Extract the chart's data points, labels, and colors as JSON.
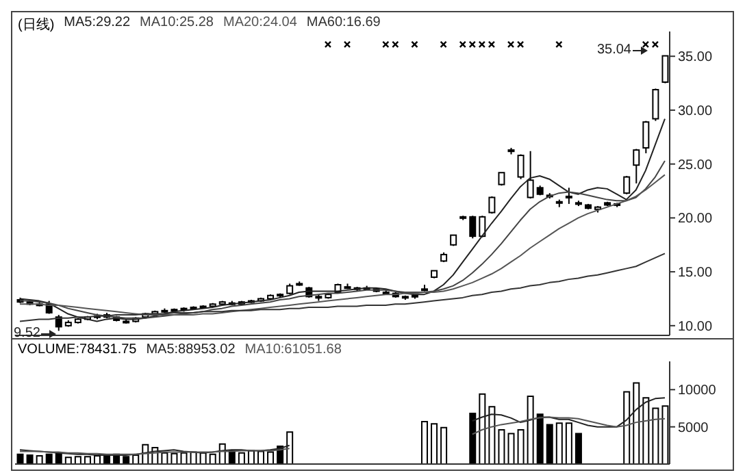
{
  "chart_data": [
    {
      "type": "candlestick",
      "title": "(日线)",
      "color": "#000000",
      "legend": "top left",
      "grid": false,
      "categories": [
        null,
        null,
        null,
        null,
        null,
        null,
        null,
        null,
        null,
        null,
        null,
        null,
        null,
        null,
        null,
        null,
        null,
        null,
        null,
        null,
        null,
        null,
        null,
        null,
        null,
        null,
        null,
        null,
        null,
        null,
        null,
        null,
        null,
        null,
        null,
        null,
        null,
        null,
        null,
        null,
        null,
        null,
        null,
        null,
        null,
        null,
        null,
        null,
        null,
        null,
        null,
        null,
        null,
        null,
        null,
        null,
        null,
        null,
        null,
        null,
        null,
        null,
        null,
        null,
        null,
        null,
        null,
        null
      ],
      "ohlc": [
        [
          12.4,
          12.6,
          12.1,
          12.2
        ],
        [
          12.2,
          12.4,
          11.9,
          12.0
        ],
        [
          12.0,
          12.3,
          11.8,
          12.0
        ],
        [
          12.0,
          12.3,
          11.1,
          11.2
        ],
        [
          10.8,
          11.0,
          9.52,
          9.9
        ],
        [
          10.0,
          10.5,
          9.9,
          10.3
        ],
        [
          10.3,
          10.7,
          10.2,
          10.6
        ],
        [
          10.6,
          10.9,
          10.5,
          10.8
        ],
        [
          10.8,
          11.1,
          10.6,
          10.9
        ],
        [
          11.0,
          11.2,
          10.7,
          10.8
        ],
        [
          10.8,
          10.9,
          10.4,
          10.5
        ],
        [
          10.4,
          10.6,
          10.2,
          10.3
        ],
        [
          10.4,
          10.8,
          10.3,
          10.7
        ],
        [
          10.8,
          11.2,
          10.7,
          11.1
        ],
        [
          11.1,
          11.4,
          11.0,
          11.3
        ],
        [
          11.3,
          11.6,
          11.2,
          11.4
        ],
        [
          11.4,
          11.6,
          11.2,
          11.5
        ],
        [
          11.5,
          11.7,
          11.3,
          11.6
        ],
        [
          11.6,
          11.8,
          11.5,
          11.7
        ],
        [
          11.7,
          11.9,
          11.6,
          11.8
        ],
        [
          11.8,
          12.1,
          11.7,
          12.0
        ],
        [
          12.0,
          12.3,
          11.9,
          12.2
        ],
        [
          12.1,
          12.3,
          11.9,
          12.0
        ],
        [
          12.0,
          12.3,
          11.9,
          12.2
        ],
        [
          12.2,
          12.4,
          12.1,
          12.3
        ],
        [
          12.3,
          12.6,
          12.2,
          12.5
        ],
        [
          12.5,
          12.9,
          12.4,
          12.8
        ],
        [
          12.8,
          13.0,
          12.6,
          12.9
        ],
        [
          13.0,
          13.9,
          12.9,
          13.7
        ],
        [
          13.9,
          14.1,
          13.7,
          13.9
        ],
        [
          13.5,
          13.6,
          12.6,
          12.7
        ],
        [
          12.7,
          12.9,
          12.3,
          12.6
        ],
        [
          12.6,
          13.0,
          12.5,
          12.9
        ],
        [
          13.1,
          13.9,
          13.0,
          13.8
        ],
        [
          13.6,
          13.9,
          13.4,
          13.6
        ],
        [
          13.4,
          13.6,
          13.2,
          13.5
        ],
        [
          13.5,
          13.7,
          13.3,
          13.4
        ],
        [
          13.4,
          13.5,
          13.1,
          13.2
        ],
        [
          13.1,
          13.3,
          12.9,
          13.0
        ],
        [
          13.0,
          13.1,
          12.6,
          12.7
        ],
        [
          12.6,
          12.8,
          12.4,
          12.7
        ],
        [
          12.7,
          12.9,
          12.5,
          12.8
        ],
        [
          13.3,
          13.8,
          13.2,
          13.4
        ],
        [
          14.5,
          15.1,
          14.4,
          15.1
        ],
        [
          16.0,
          16.8,
          15.9,
          16.6
        ],
        [
          17.5,
          18.4,
          17.4,
          18.4
        ],
        [
          20.0,
          20.2,
          19.8,
          20.1
        ],
        [
          20.1,
          20.2,
          18.1,
          18.3
        ],
        [
          18.3,
          20.2,
          18.2,
          20.1
        ],
        [
          20.5,
          22.0,
          20.4,
          21.9
        ],
        [
          23.1,
          24.2,
          23.0,
          24.2
        ],
        [
          26.3,
          26.5,
          25.9,
          26.3
        ],
        [
          23.8,
          25.9,
          23.6,
          25.8
        ],
        [
          21.9,
          26.2,
          21.8,
          23.5
        ],
        [
          22.8,
          23.0,
          22.1,
          22.2
        ],
        [
          22.1,
          22.3,
          21.8,
          22.0
        ],
        [
          21.5,
          21.7,
          21.0,
          21.5
        ],
        [
          21.9,
          22.8,
          21.3,
          22.0
        ],
        [
          21.4,
          21.6,
          21.1,
          21.3
        ],
        [
          21.2,
          21.3,
          20.8,
          20.9
        ],
        [
          20.8,
          21.1,
          20.5,
          21.0
        ],
        [
          21.4,
          21.5,
          21.1,
          21.2
        ],
        [
          21.2,
          21.4,
          21.0,
          21.3
        ],
        [
          22.3,
          23.9,
          22.2,
          23.8
        ],
        [
          24.9,
          26.4,
          23.2,
          26.3
        ],
        [
          26.5,
          29.0,
          26.0,
          28.9
        ],
        [
          29.2,
          32.0,
          29.0,
          31.9
        ],
        [
          32.6,
          35.04,
          32.5,
          35.04
        ]
      ],
      "ylim": [
        9.1,
        37.3
      ],
      "yticks": [
        {
          "value": 10,
          "label": "10.00"
        },
        {
          "value": 15,
          "label": "15.00"
        },
        {
          "value": 20,
          "label": "20.00"
        },
        {
          "value": 25,
          "label": "25.00"
        },
        {
          "value": 30,
          "label": "30.00"
        },
        {
          "value": 35,
          "label": "35.00"
        }
      ],
      "annotations": [
        "9.52",
        "35.04"
      ],
      "series": [
        {
          "name": "MA5:29.22",
          "type": "line",
          "color": "#222222",
          "values": [
            12.5,
            12.4,
            12.3,
            12.1,
            11.6,
            11.1,
            10.8,
            10.6,
            10.4,
            10.6,
            10.7,
            10.6,
            10.6,
            10.7,
            10.9,
            11.1,
            11.3,
            11.4,
            11.5,
            11.6,
            11.7,
            11.9,
            12.0,
            12.1,
            12.2,
            12.3,
            12.4,
            12.6,
            12.8,
            13.1,
            13.2,
            13.2,
            13.2,
            13.2,
            13.3,
            13.4,
            13.5,
            13.5,
            13.4,
            13.2,
            13.0,
            12.9,
            12.9,
            13.2,
            13.8,
            14.7,
            15.9,
            17.1,
            18.3,
            19.5,
            20.6,
            21.8,
            22.9,
            23.7,
            23.9,
            23.6,
            23.0,
            22.4,
            22.2,
            22.6,
            22.8,
            22.7,
            22.2,
            21.7,
            22.6,
            24.4,
            26.8,
            29.2
          ]
        },
        {
          "name": "MA10:25.28",
          "type": "line",
          "color": "#444444",
          "values": [
            12.3,
            12.3,
            12.2,
            12.1,
            11.9,
            11.6,
            11.4,
            11.2,
            11.0,
            10.9,
            10.8,
            10.7,
            10.7,
            10.7,
            10.8,
            10.9,
            11.0,
            11.1,
            11.2,
            11.3,
            11.5,
            11.6,
            11.8,
            11.9,
            12.0,
            12.1,
            12.2,
            12.4,
            12.5,
            12.7,
            12.8,
            12.9,
            13.0,
            13.0,
            13.1,
            13.2,
            13.3,
            13.3,
            13.3,
            13.2,
            13.1,
            13.1,
            13.1,
            13.2,
            13.4,
            13.7,
            14.2,
            14.9,
            15.7,
            16.6,
            17.6,
            18.7,
            19.8,
            20.8,
            21.5,
            22.0,
            22.3,
            22.4,
            22.3,
            22.1,
            21.9,
            21.7,
            21.6,
            21.6,
            21.9,
            22.7,
            23.8,
            25.3
          ]
        },
        {
          "name": "MA20:24.04",
          "type": "line",
          "color": "#555555",
          "values": [
            12.0,
            12.0,
            12.0,
            11.9,
            11.9,
            11.8,
            11.7,
            11.6,
            11.5,
            11.4,
            11.3,
            11.2,
            11.1,
            11.0,
            11.0,
            11.0,
            11.0,
            11.0,
            11.0,
            11.1,
            11.1,
            11.2,
            11.3,
            11.4,
            11.5,
            11.6,
            11.7,
            11.8,
            11.9,
            12.0,
            12.1,
            12.2,
            12.3,
            12.4,
            12.5,
            12.6,
            12.7,
            12.8,
            12.9,
            12.9,
            13.0,
            13.0,
            13.1,
            13.1,
            13.2,
            13.4,
            13.7,
            14.0,
            14.4,
            14.8,
            15.3,
            15.9,
            16.5,
            17.2,
            17.8,
            18.4,
            19.0,
            19.5,
            20.0,
            20.4,
            20.7,
            21.0,
            21.3,
            21.6,
            22.0,
            22.6,
            23.3,
            24.0
          ]
        },
        {
          "name": "MA60:16.69",
          "type": "line",
          "color": "#333333",
          "values": [
            10.4,
            10.5,
            10.6,
            10.6,
            10.7,
            10.7,
            10.8,
            10.8,
            10.9,
            10.9,
            11.0,
            11.0,
            11.0,
            11.1,
            11.1,
            11.1,
            11.2,
            11.2,
            11.2,
            11.3,
            11.3,
            11.3,
            11.4,
            11.4,
            11.4,
            11.5,
            11.5,
            11.5,
            11.6,
            11.6,
            11.7,
            11.7,
            11.7,
            11.8,
            11.8,
            11.8,
            11.9,
            11.9,
            11.9,
            12.0,
            12.0,
            12.1,
            12.2,
            12.3,
            12.4,
            12.5,
            12.6,
            12.8,
            12.9,
            13.1,
            13.2,
            13.4,
            13.5,
            13.7,
            13.8,
            14.0,
            14.1,
            14.3,
            14.4,
            14.6,
            14.7,
            14.9,
            15.1,
            15.3,
            15.5,
            15.9,
            16.3,
            16.7
          ]
        },
        {
          "type": "scatter",
          "color": "#000000",
          "marker": "cross",
          "values": [
            null,
            null,
            null,
            null,
            null,
            null,
            null,
            null,
            null,
            null,
            null,
            null,
            null,
            null,
            null,
            null,
            null,
            null,
            null,
            null,
            null,
            null,
            null,
            null,
            null,
            null,
            null,
            null,
            null,
            null,
            null,
            null,
            36.1,
            null,
            36.1,
            null,
            null,
            null,
            36.1,
            36.1,
            null,
            36.1,
            null,
            null,
            36.1,
            null,
            36.1,
            36.1,
            36.1,
            36.1,
            null,
            36.1,
            36.1,
            null,
            null,
            null,
            36.1,
            null,
            null,
            null,
            null,
            null,
            null,
            null,
            null,
            36.1,
            36.1,
            null
          ]
        }
      ]
    },
    {
      "type": "bar",
      "legend": "top left",
      "grid": false,
      "categories": [
        null,
        null,
        null,
        null,
        null,
        null,
        null,
        null,
        null,
        null,
        null,
        null,
        null,
        null,
        null,
        null,
        null,
        null,
        null,
        null,
        null,
        null,
        null,
        null,
        null,
        null,
        null,
        null,
        null,
        null,
        null,
        null,
        null,
        null,
        null,
        null,
        null,
        null,
        null,
        null,
        null,
        null,
        null,
        null,
        null,
        null,
        null,
        null,
        null,
        null,
        null,
        null,
        null,
        null,
        null,
        null,
        null,
        null,
        null,
        null,
        null,
        null,
        null,
        null,
        null,
        null,
        null,
        null
      ],
      "ylim": [
        0,
        13800
      ],
      "yticks": [
        5000,
        10000
      ],
      "series": [
        {
          "name": "VOLUME:78431.75",
          "type": "bar",
          "color": "#000000",
          "values": [
            1300,
            1200,
            1100,
            1300,
            1500,
            900,
            1000,
            1000,
            1100,
            1200,
            1300,
            1000,
            1200,
            2600,
            2200,
            1500,
            1400,
            1500,
            1600,
            1500,
            1300,
            2700,
            1800,
            1500,
            1800,
            1700,
            1600,
            2400,
            4300,
            null,
            null,
            null,
            null,
            null,
            null,
            null,
            null,
            null,
            null,
            null,
            null,
            null,
            5700,
            5400,
            4900,
            null,
            null,
            6800,
            9400,
            7700,
            4600,
            4100,
            4600,
            9100,
            6700,
            5300,
            5500,
            5500,
            4100,
            null,
            null,
            null,
            null,
            9700,
            10900,
            8900,
            7500,
            7800
          ],
          "colors": [
            "#000000",
            "#000000",
            "#ffffff",
            "#000000",
            "#000000",
            "#ffffff",
            "#ffffff",
            "#ffffff",
            "#ffffff",
            "#000000",
            "#000000",
            "#000000",
            "#ffffff",
            "#ffffff",
            "#ffffff",
            "#ffffff",
            "#ffffff",
            "#ffffff",
            "#ffffff",
            "#ffffff",
            "#ffffff",
            "#ffffff",
            "#000000",
            "#ffffff",
            "#ffffff",
            "#ffffff",
            "#ffffff",
            "#000000",
            "#ffffff",
            "#ffffff",
            "#000000",
            "#000000",
            "#ffffff",
            "#ffffff",
            "#ffffff",
            "#ffffff",
            "#000000",
            "#000000",
            "#000000",
            "#000000",
            "#ffffff",
            "#ffffff",
            "#ffffff",
            "#ffffff",
            "#ffffff",
            "#ffffff",
            "#ffffff",
            "#000000",
            "#ffffff",
            "#ffffff",
            "#ffffff",
            "#ffffff",
            "#ffffff",
            "#ffffff",
            "#000000",
            "#000000",
            "#ffffff",
            "#ffffff",
            "#000000",
            "#000000",
            "#ffffff",
            "#000000",
            "#ffffff",
            "#ffffff",
            "#ffffff",
            "#ffffff",
            "#ffffff",
            "#ffffff"
          ]
        },
        {
          "name": "MA5:88953.02",
          "type": "line",
          "color": "#222222",
          "values": [
            1900,
            1800,
            1700,
            1600,
            1500,
            1400,
            1300,
            1300,
            1200,
            1200,
            1200,
            1200,
            1300,
            1500,
            1700,
            1800,
            1900,
            1700,
            1600,
            1500,
            1600,
            1800,
            1900,
            1900,
            1800,
            1800,
            1900,
            2100,
            2500,
            null,
            null,
            null,
            null,
            null,
            null,
            null,
            null,
            null,
            null,
            null,
            null,
            null,
            null,
            null,
            null,
            null,
            null,
            5800,
            6300,
            6700,
            6600,
            6200,
            5600,
            5900,
            6300,
            6300,
            6000,
            6000,
            5600,
            5200,
            5000,
            5000,
            5000,
            5900,
            7300,
            8300,
            8800,
            8900
          ]
        },
        {
          "name": "MA10:61051.68",
          "type": "line",
          "color": "#555555",
          "values": [
            1700,
            1700,
            1700,
            1600,
            1600,
            1500,
            1500,
            1400,
            1400,
            1300,
            1300,
            1300,
            1300,
            1400,
            1500,
            1600,
            1600,
            1600,
            1600,
            1600,
            1600,
            1700,
            1700,
            1800,
            1800,
            1800,
            1800,
            1900,
            2100,
            null,
            null,
            null,
            null,
            null,
            null,
            null,
            null,
            null,
            null,
            null,
            null,
            null,
            null,
            null,
            null,
            null,
            null,
            4000,
            4600,
            5000,
            5300,
            5500,
            5700,
            6000,
            6200,
            6300,
            6200,
            6200,
            6100,
            5800,
            5500,
            5200,
            5000,
            5200,
            5600,
            5800,
            6000,
            6100
          ]
        }
      ]
    }
  ]
}
